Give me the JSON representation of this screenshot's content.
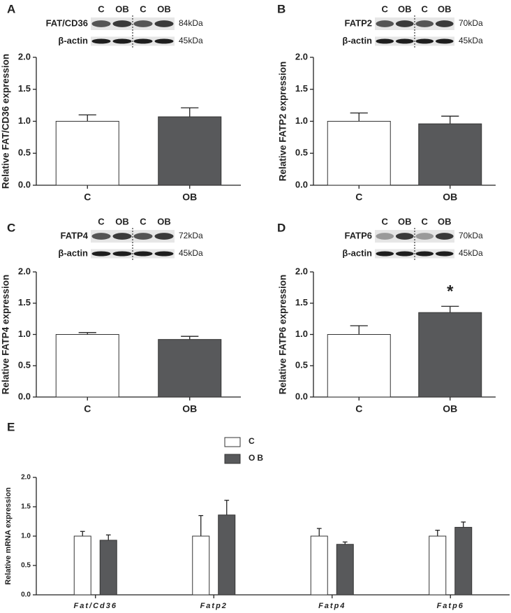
{
  "chart_data": [
    {
      "type": "bar",
      "panel": "A",
      "ylabel": "Relative FAT/CD36 expression",
      "categories": [
        "C",
        "OB"
      ],
      "values": [
        1.0,
        1.07
      ],
      "errors": [
        0.1,
        0.14
      ],
      "colors": [
        "#ffffff",
        "#58595b"
      ],
      "ylim": [
        0,
        2
      ],
      "yticks": [
        {
          "value": 0,
          "label": "0.0"
        },
        0.5,
        {
          "value": 1,
          "label": "1.0"
        },
        1.5,
        {
          "value": 2,
          "label": "2.0"
        }
      ],
      "blot": {
        "lanes": [
          "C",
          "OB",
          "C",
          "OB"
        ],
        "rows": [
          {
            "name": "FAT/CD36",
            "size": "84kDa"
          },
          {
            "name": "β-actin",
            "size": "45kDa"
          }
        ]
      }
    },
    {
      "type": "bar",
      "panel": "B",
      "ylabel": "Relative FATP2  expression",
      "categories": [
        "C",
        "OB"
      ],
      "values": [
        1.0,
        0.96
      ],
      "errors": [
        0.13,
        0.12
      ],
      "colors": [
        "#ffffff",
        "#58595b"
      ],
      "ylim": [
        0,
        2
      ],
      "yticks": [
        {
          "value": 0,
          "label": "0.0"
        },
        0.5,
        {
          "value": 1,
          "label": "1.0"
        },
        1.5,
        {
          "value": 2,
          "label": "2.0"
        }
      ],
      "blot": {
        "lanes": [
          "C",
          "OB",
          "C",
          "OB"
        ],
        "rows": [
          {
            "name": "FATP2",
            "size": "70kDa"
          },
          {
            "name": "β-actin",
            "size": "45kDa"
          }
        ]
      }
    },
    {
      "type": "bar",
      "panel": "C",
      "ylabel": "Relative FATP4  expression",
      "categories": [
        "C",
        "OB"
      ],
      "values": [
        1.0,
        0.92
      ],
      "errors": [
        0.03,
        0.05
      ],
      "colors": [
        "#ffffff",
        "#58595b"
      ],
      "ylim": [
        0,
        2
      ],
      "yticks": [
        {
          "value": 0,
          "label": "0.0"
        },
        0.5,
        {
          "value": 1,
          "label": "1.0"
        },
        1.5,
        {
          "value": 2,
          "label": "2.0"
        }
      ],
      "blot": {
        "lanes": [
          "C",
          "OB",
          "C",
          "OB"
        ],
        "rows": [
          {
            "name": "FATP4",
            "size": "72kDa"
          },
          {
            "name": "β-actin",
            "size": "45kDa"
          }
        ]
      }
    },
    {
      "type": "bar",
      "panel": "D",
      "ylabel": "Relative FATP6  expression",
      "categories": [
        "C",
        "OB"
      ],
      "values": [
        1.0,
        1.35
      ],
      "errors": [
        0.14,
        0.1
      ],
      "colors": [
        "#ffffff",
        "#58595b"
      ],
      "ylim": [
        0,
        2
      ],
      "yticks": [
        {
          "value": 0,
          "label": "0.0"
        },
        0.5,
        {
          "value": 1,
          "label": "1.0"
        },
        1.5,
        {
          "value": 2,
          "label": "2.0"
        }
      ],
      "annotation": "*",
      "blot": {
        "lanes": [
          "C",
          "OB",
          "C",
          "OB"
        ],
        "rows": [
          {
            "name": "FATP6",
            "size": "70kDa"
          },
          {
            "name": "β-actin",
            "size": "45kDa"
          }
        ]
      }
    },
    {
      "type": "bar",
      "panel": "E",
      "ylabel": "Relative mRNA expression",
      "categories": [
        "Fat/Cd36",
        "Fatp2",
        "Fatp4",
        "Fatp6"
      ],
      "series": [
        {
          "name": "C",
          "color": "#ffffff",
          "values": [
            1.0,
            1.0,
            1.0,
            1.0
          ],
          "errors": [
            0.08,
            0.35,
            0.13,
            0.1
          ]
        },
        {
          "name": "OB",
          "color": "#58595b",
          "values": [
            0.93,
            1.36,
            0.86,
            1.15
          ],
          "errors": [
            0.09,
            0.25,
            0.04,
            0.09
          ]
        }
      ],
      "ylim": [
        0,
        2
      ],
      "yticks": [
        {
          "value": 0,
          "label": "0.0"
        },
        0.5,
        {
          "value": 1,
          "label": "1.0"
        },
        1.5,
        {
          "value": 2,
          "label": "2.0"
        }
      ],
      "legend": "top"
    }
  ]
}
